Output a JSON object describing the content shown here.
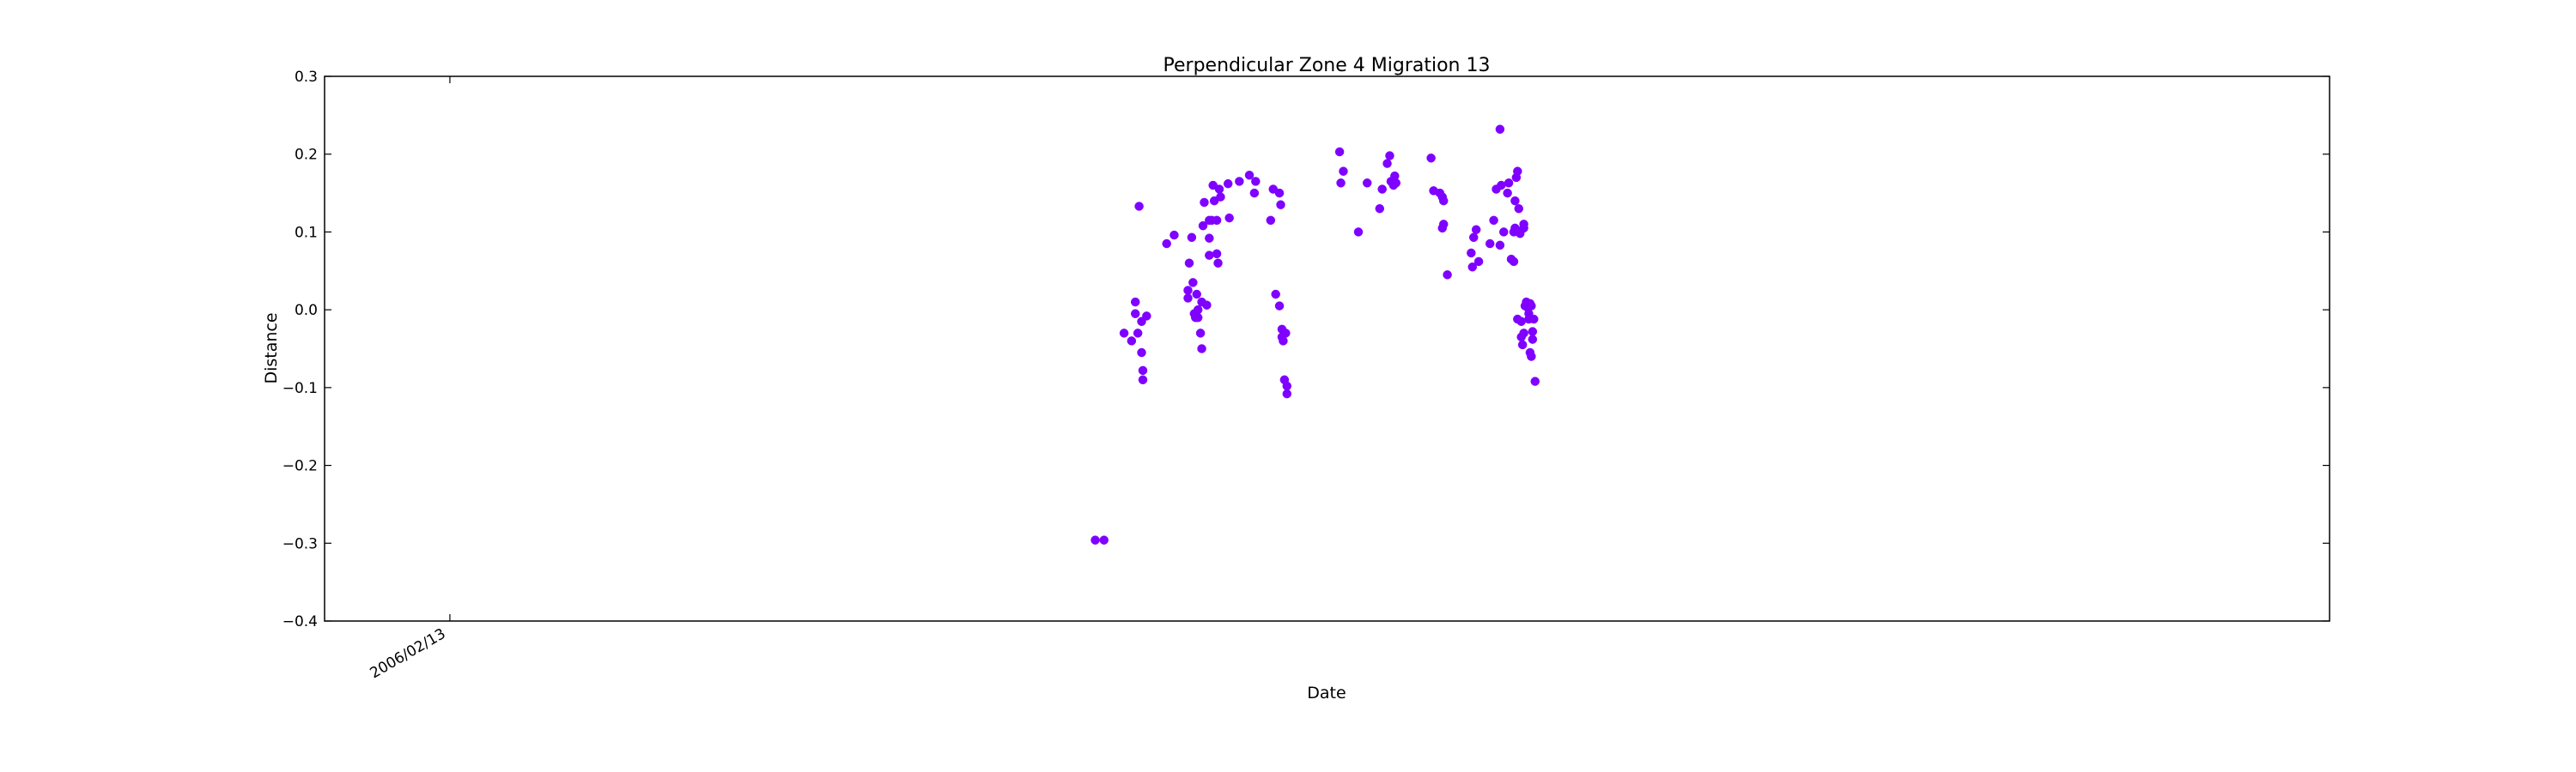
{
  "chart_data": {
    "type": "scatter",
    "title": "Perpendicular Zone 4 Migration 13",
    "xlabel": "Date",
    "ylabel": "Distance",
    "ylim": [
      -0.4,
      0.3
    ],
    "xlim": [
      -1,
      15
    ],
    "y_ticks": [
      -0.4,
      -0.3,
      -0.2,
      -0.1,
      0.0,
      0.1,
      0.2,
      0.3
    ],
    "y_tick_labels": [
      "−0.4",
      "−0.3",
      "−0.2",
      "−0.1",
      "0.0",
      "0.1",
      "0.2",
      "0.3"
    ],
    "x_ticks": [
      {
        "x": 0,
        "label": "2006/02/13"
      }
    ],
    "grid": false,
    "legend": "none",
    "marker_color": "#7f00ff",
    "series": [
      {
        "points": [
          [
            5.15,
            -0.296
          ],
          [
            5.22,
            -0.296
          ],
          [
            5.38,
            -0.03
          ],
          [
            5.44,
            -0.04
          ],
          [
            5.47,
            0.01
          ],
          [
            5.47,
            -0.005
          ],
          [
            5.49,
            -0.03
          ],
          [
            5.5,
            0.133
          ],
          [
            5.52,
            -0.015
          ],
          [
            5.52,
            -0.055
          ],
          [
            5.53,
            -0.078
          ],
          [
            5.53,
            -0.09
          ],
          [
            5.56,
            -0.008
          ],
          [
            5.72,
            0.085
          ],
          [
            5.78,
            0.096
          ],
          [
            5.89,
            0.015
          ],
          [
            5.89,
            0.025
          ],
          [
            5.9,
            0.06
          ],
          [
            5.92,
            0.093
          ],
          [
            5.93,
            0.035
          ],
          [
            5.94,
            -0.005
          ],
          [
            5.95,
            -0.01
          ],
          [
            5.96,
            0.02
          ],
          [
            5.97,
            -0.01
          ],
          [
            5.97,
            0.0
          ],
          [
            5.99,
            -0.03
          ],
          [
            6.0,
            -0.05
          ],
          [
            6.0,
            0.01
          ],
          [
            6.01,
            0.108
          ],
          [
            6.02,
            0.138
          ],
          [
            6.04,
            0.006
          ],
          [
            6.06,
            0.115
          ],
          [
            6.06,
            0.07
          ],
          [
            6.06,
            0.092
          ],
          [
            6.08,
            0.115
          ],
          [
            6.09,
            0.16
          ],
          [
            6.1,
            0.14
          ],
          [
            6.12,
            0.072
          ],
          [
            6.12,
            0.115
          ],
          [
            6.13,
            0.06
          ],
          [
            6.14,
            0.155
          ],
          [
            6.15,
            0.145
          ],
          [
            6.21,
            0.162
          ],
          [
            6.22,
            0.118
          ],
          [
            6.3,
            0.165
          ],
          [
            6.38,
            0.173
          ],
          [
            6.43,
            0.165
          ],
          [
            6.42,
            0.15
          ],
          [
            6.55,
            0.115
          ],
          [
            6.57,
            0.155
          ],
          [
            6.59,
            0.02
          ],
          [
            6.62,
            0.005
          ],
          [
            6.62,
            0.15
          ],
          [
            6.63,
            0.135
          ],
          [
            6.64,
            -0.025
          ],
          [
            6.64,
            -0.035
          ],
          [
            6.65,
            -0.04
          ],
          [
            6.66,
            -0.09
          ],
          [
            6.67,
            -0.03
          ],
          [
            6.68,
            -0.098
          ],
          [
            6.68,
            -0.108
          ],
          [
            7.1,
            0.203
          ],
          [
            7.11,
            0.163
          ],
          [
            7.13,
            0.178
          ],
          [
            7.25,
            0.1
          ],
          [
            7.32,
            0.163
          ],
          [
            7.42,
            0.13
          ],
          [
            7.44,
            0.155
          ],
          [
            7.48,
            0.188
          ],
          [
            7.5,
            0.198
          ],
          [
            7.51,
            0.165
          ],
          [
            7.53,
            0.16
          ],
          [
            7.54,
            0.172
          ],
          [
            7.55,
            0.163
          ],
          [
            7.83,
            0.195
          ],
          [
            7.85,
            0.153
          ],
          [
            7.9,
            0.15
          ],
          [
            7.92,
            0.145
          ],
          [
            7.93,
            0.14
          ],
          [
            7.92,
            0.105
          ],
          [
            7.93,
            0.11
          ],
          [
            7.96,
            0.045
          ],
          [
            8.15,
            0.073
          ],
          [
            8.16,
            0.055
          ],
          [
            8.17,
            0.093
          ],
          [
            8.19,
            0.103
          ],
          [
            8.21,
            0.062
          ],
          [
            8.3,
            0.085
          ],
          [
            8.33,
            0.115
          ],
          [
            8.35,
            0.155
          ],
          [
            8.38,
            0.232
          ],
          [
            8.38,
            0.083
          ],
          [
            8.39,
            0.16
          ],
          [
            8.41,
            0.1
          ],
          [
            8.44,
            0.15
          ],
          [
            8.45,
            0.163
          ],
          [
            8.47,
            0.065
          ],
          [
            8.49,
            0.062
          ],
          [
            8.49,
            0.1
          ],
          [
            8.5,
            0.105
          ],
          [
            8.5,
            0.14
          ],
          [
            8.51,
            0.17
          ],
          [
            8.52,
            0.178
          ],
          [
            8.52,
            -0.012
          ],
          [
            8.53,
            0.13
          ],
          [
            8.54,
            0.098
          ],
          [
            8.55,
            -0.015
          ],
          [
            8.55,
            -0.035
          ],
          [
            8.56,
            -0.045
          ],
          [
            8.57,
            0.11
          ],
          [
            8.57,
            0.105
          ],
          [
            8.57,
            -0.03
          ],
          [
            8.58,
            0.005
          ],
          [
            8.59,
            0.01
          ],
          [
            8.6,
            0.003
          ],
          [
            8.61,
            -0.005
          ],
          [
            8.61,
            -0.012
          ],
          [
            8.62,
            0.008
          ],
          [
            8.62,
            -0.055
          ],
          [
            8.63,
            -0.06
          ],
          [
            8.63,
            0.005
          ],
          [
            8.64,
            -0.028
          ],
          [
            8.64,
            -0.038
          ],
          [
            8.65,
            -0.012
          ],
          [
            8.66,
            -0.092
          ]
        ]
      }
    ]
  }
}
